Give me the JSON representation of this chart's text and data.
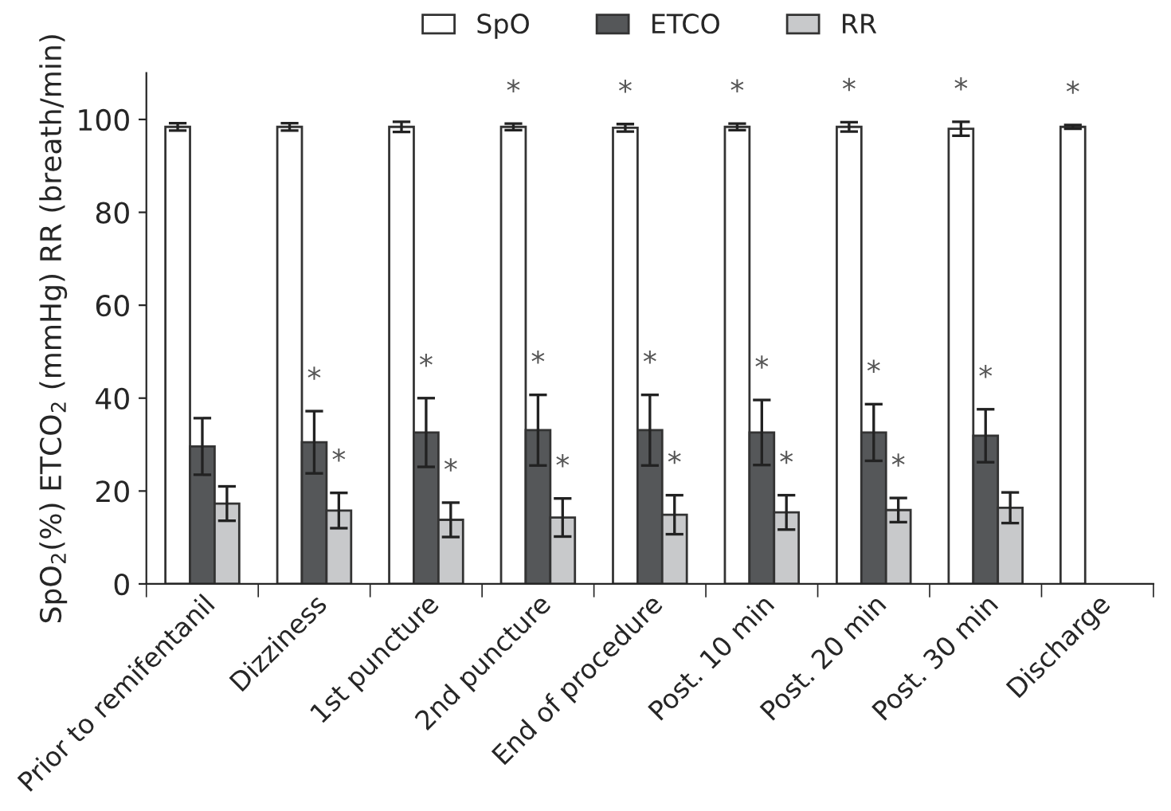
{
  "chart_data": {
    "type": "bar",
    "ylabel": "SpO$_{2}$(%) ETCO$_{2}$ (mmHg) RR (breath/min)",
    "categories": [
      "Prior to remifentanil",
      "Dizziness",
      "1st puncture",
      "2nd puncture",
      "End of procedure",
      "Post. 10 min",
      "Post. 20 min",
      "Post. 30 min",
      "Discharge"
    ],
    "series": [
      {
        "name": "SpO",
        "color": "#ffffff",
        "values": [
          98.4,
          98.4,
          98.4,
          98.4,
          98.2,
          98.4,
          98.4,
          98.0,
          98.4
        ],
        "errors": [
          0.8,
          0.8,
          1.1,
          0.7,
          0.8,
          0.7,
          1.0,
          1.5,
          0.4
        ],
        "value_labels": [
          null,
          null,
          null,
          "*",
          "*",
          "*",
          "*",
          "*",
          "*"
        ]
      },
      {
        "name": "ETCO",
        "color": "#555759",
        "values": [
          29.6,
          30.5,
          32.6,
          33.1,
          33.1,
          32.6,
          32.6,
          31.9,
          null
        ],
        "errors": [
          6.1,
          6.7,
          7.4,
          7.6,
          7.6,
          7.0,
          6.1,
          5.7,
          null
        ],
        "value_labels": [
          null,
          "*",
          "*",
          "*",
          "*",
          "*",
          "*",
          "*",
          null
        ]
      },
      {
        "name": "RR",
        "color": "#c8c9cb",
        "values": [
          17.3,
          15.8,
          13.8,
          14.3,
          14.9,
          15.4,
          15.9,
          16.4,
          null
        ],
        "errors": [
          3.7,
          3.8,
          3.7,
          4.1,
          4.2,
          3.7,
          2.6,
          3.3,
          null
        ],
        "value_labels": [
          null,
          "*",
          "*",
          "*",
          "*",
          "*",
          "*",
          null,
          null
        ]
      }
    ],
    "ylim": [
      0,
      110
    ],
    "yticks": [
      0,
      20,
      40,
      60,
      80,
      100
    ],
    "grid": false,
    "legend": "top"
  }
}
